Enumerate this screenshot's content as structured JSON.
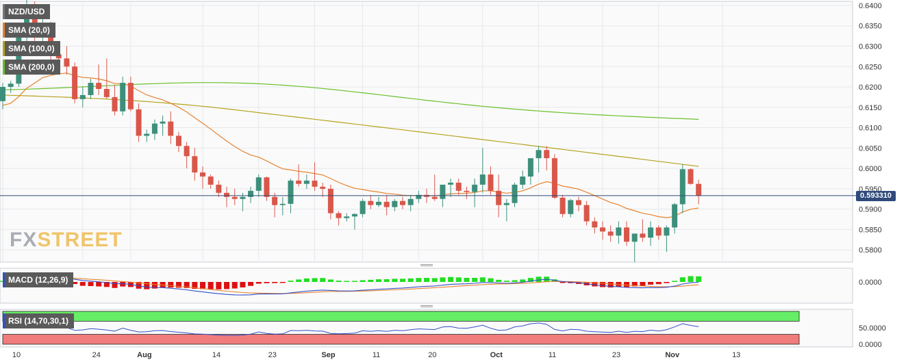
{
  "chart_data": {
    "type": "candlestick",
    "instrument": "NZD/USD",
    "current_price": "0.593310",
    "legend": [
      {
        "label": "NZD/USD",
        "color": "#444444"
      },
      {
        "label": "SMA (20,0)",
        "color": "#e8822c"
      },
      {
        "label": "SMA (100,0)",
        "color": "#b5a21d"
      },
      {
        "label": "SMA (200,0)",
        "color": "#6ac02b"
      }
    ],
    "colors": {
      "up": "#3d8f7b",
      "down": "#d9574a",
      "sma20": "#e8822c",
      "sma100": "#b5a21d",
      "sma200": "#6ac02b",
      "macd_line": "#3050c8",
      "macd_signal": "#e8822c",
      "macd_hist_up": "#22dd22",
      "macd_hist_down": "#dd1111",
      "rsi_line": "#3050c8",
      "rsi_overbought": "#66ee66",
      "rsi_oversold": "#f07c7c",
      "price_line": "#2f4a7a"
    },
    "y_axis": {
      "min": 0.577,
      "max": 0.641,
      "ticks": [
        "0.6400",
        "0.6350",
        "0.6300",
        "0.6250",
        "0.6200",
        "0.6150",
        "0.6100",
        "0.6050",
        "0.6000",
        "0.5950",
        "0.5900",
        "0.5850",
        "0.5800"
      ]
    },
    "x_axis_ticks": [
      {
        "label": "10",
        "i": 0
      },
      {
        "label": "24",
        "i": 10
      },
      {
        "label": "Aug",
        "i": 16
      },
      {
        "label": "14",
        "i": 25
      },
      {
        "label": "23",
        "i": 32
      },
      {
        "label": "Sep",
        "i": 39
      },
      {
        "label": "11",
        "i": 45
      },
      {
        "label": "20",
        "i": 52
      },
      {
        "label": "Oct",
        "i": 60
      },
      {
        "label": "11",
        "i": 67
      },
      {
        "label": "23",
        "i": 75
      },
      {
        "label": "Nov",
        "i": 82
      },
      {
        "label": "13",
        "i": 90
      }
    ],
    "candles": [
      [
        0.6165,
        0.621,
        0.6145,
        0.62
      ],
      [
        0.62,
        0.6215,
        0.6185,
        0.6208
      ],
      [
        0.6208,
        0.6345,
        0.62,
        0.633
      ],
      [
        0.633,
        0.642,
        0.63,
        0.6395
      ],
      [
        0.6395,
        0.641,
        0.631,
        0.633
      ],
      [
        0.633,
        0.638,
        0.628,
        0.635
      ],
      [
        0.635,
        0.636,
        0.626,
        0.628
      ],
      [
        0.628,
        0.631,
        0.625,
        0.627
      ],
      [
        0.627,
        0.63,
        0.623,
        0.625
      ],
      [
        0.625,
        0.626,
        0.616,
        0.617
      ],
      [
        0.617,
        0.62,
        0.615,
        0.618
      ],
      [
        0.618,
        0.622,
        0.617,
        0.621
      ],
      [
        0.621,
        0.6255,
        0.618,
        0.6195
      ],
      [
        0.6195,
        0.627,
        0.617,
        0.6175
      ],
      [
        0.6175,
        0.6205,
        0.613,
        0.614
      ],
      [
        0.614,
        0.6225,
        0.613,
        0.621
      ],
      [
        0.621,
        0.6225,
        0.614,
        0.6145
      ],
      [
        0.6145,
        0.616,
        0.6065,
        0.608
      ],
      [
        0.608,
        0.6095,
        0.6065,
        0.6085
      ],
      [
        0.6085,
        0.612,
        0.607,
        0.611
      ],
      [
        0.611,
        0.613,
        0.608,
        0.6115
      ],
      [
        0.6115,
        0.614,
        0.606,
        0.608
      ],
      [
        0.608,
        0.609,
        0.604,
        0.6055
      ],
      [
        0.6055,
        0.6065,
        0.6,
        0.603
      ],
      [
        0.603,
        0.605,
        0.597,
        0.599
      ],
      [
        0.599,
        0.6005,
        0.595,
        0.598
      ],
      [
        0.598,
        0.5985,
        0.595,
        0.596
      ],
      [
        0.596,
        0.597,
        0.593,
        0.594
      ],
      [
        0.594,
        0.5955,
        0.5905,
        0.593
      ],
      [
        0.593,
        0.595,
        0.591,
        0.5925
      ],
      [
        0.5925,
        0.594,
        0.5895,
        0.593
      ],
      [
        0.593,
        0.5955,
        0.5915,
        0.5945
      ],
      [
        0.5945,
        0.5985,
        0.593,
        0.5978
      ],
      [
        0.5978,
        0.598,
        0.592,
        0.593
      ],
      [
        0.593,
        0.594,
        0.588,
        0.591
      ],
      [
        0.591,
        0.593,
        0.5885,
        0.5913
      ],
      [
        0.5913,
        0.5975,
        0.589,
        0.597
      ],
      [
        0.597,
        0.601,
        0.5955,
        0.5962
      ],
      [
        0.5962,
        0.5985,
        0.595,
        0.597
      ],
      [
        0.597,
        0.6015,
        0.5945,
        0.5955
      ],
      [
        0.5955,
        0.5965,
        0.593,
        0.595
      ],
      [
        0.595,
        0.596,
        0.5875,
        0.589
      ],
      [
        0.589,
        0.5895,
        0.586,
        0.5878
      ],
      [
        0.5878,
        0.589,
        0.587,
        0.5882
      ],
      [
        0.5882,
        0.589,
        0.585,
        0.5888
      ],
      [
        0.5888,
        0.5925,
        0.588,
        0.592
      ],
      [
        0.592,
        0.5935,
        0.59,
        0.591
      ],
      [
        0.591,
        0.593,
        0.5905,
        0.5918
      ],
      [
        0.5918,
        0.5935,
        0.5885,
        0.5905
      ],
      [
        0.5905,
        0.5925,
        0.5895,
        0.592
      ],
      [
        0.592,
        0.593,
        0.59,
        0.591
      ],
      [
        0.591,
        0.5935,
        0.5895,
        0.5925
      ],
      [
        0.5925,
        0.5945,
        0.5915,
        0.5935
      ],
      [
        0.5935,
        0.595,
        0.5915,
        0.593
      ],
      [
        0.593,
        0.5985,
        0.592,
        0.5925
      ],
      [
        0.5925,
        0.5955,
        0.5905,
        0.596
      ],
      [
        0.596,
        0.5975,
        0.593,
        0.5965
      ],
      [
        0.5965,
        0.5975,
        0.5935,
        0.5945
      ],
      [
        0.5945,
        0.5955,
        0.5925,
        0.5942
      ],
      [
        0.5942,
        0.5975,
        0.5905,
        0.596
      ],
      [
        0.596,
        0.605,
        0.594,
        0.5985
      ],
      [
        0.5985,
        0.6005,
        0.5935,
        0.5945
      ],
      [
        0.5945,
        0.5985,
        0.588,
        0.591
      ],
      [
        0.591,
        0.5925,
        0.587,
        0.5915
      ],
      [
        0.5915,
        0.5965,
        0.5905,
        0.596
      ],
      [
        0.596,
        0.5995,
        0.595,
        0.598
      ],
      [
        0.598,
        0.6025,
        0.596,
        0.6025
      ],
      [
        0.6025,
        0.6055,
        0.599,
        0.6045
      ],
      [
        0.6045,
        0.6055,
        0.5995,
        0.6025
      ],
      [
        0.6025,
        0.6035,
        0.5925,
        0.5928
      ],
      [
        0.5928,
        0.5935,
        0.588,
        0.5888
      ],
      [
        0.5888,
        0.5925,
        0.588,
        0.5922
      ],
      [
        0.5922,
        0.593,
        0.5895,
        0.591
      ],
      [
        0.591,
        0.592,
        0.586,
        0.587
      ],
      [
        0.587,
        0.588,
        0.584,
        0.5855
      ],
      [
        0.5855,
        0.587,
        0.5825,
        0.5845
      ],
      [
        0.5845,
        0.586,
        0.582,
        0.5835
      ],
      [
        0.5835,
        0.587,
        0.5815,
        0.5855
      ],
      [
        0.5855,
        0.587,
        0.581,
        0.582
      ],
      [
        0.582,
        0.5835,
        0.577,
        0.584
      ],
      [
        0.584,
        0.5875,
        0.582,
        0.583
      ],
      [
        0.583,
        0.587,
        0.581,
        0.5855
      ],
      [
        0.5855,
        0.586,
        0.5825,
        0.5835
      ],
      [
        0.5835,
        0.586,
        0.5795,
        0.5855
      ],
      [
        0.5855,
        0.5915,
        0.584,
        0.5912
      ],
      [
        0.5912,
        0.601,
        0.589,
        0.5998
      ],
      [
        0.5998,
        0.6,
        0.596,
        0.5962
      ],
      [
        0.5962,
        0.5972,
        0.5912,
        0.5933
      ]
    ],
    "macd_panel": {
      "label": "MACD (12,26,9)",
      "ticks": [
        "0.0000"
      ]
    },
    "rsi_panel": {
      "label": "RSI (14,70,30,1)",
      "ticks": [
        "50.0000",
        "0.0000"
      ]
    },
    "watermark": {
      "part1": "FX",
      "part2": "STREET"
    }
  }
}
